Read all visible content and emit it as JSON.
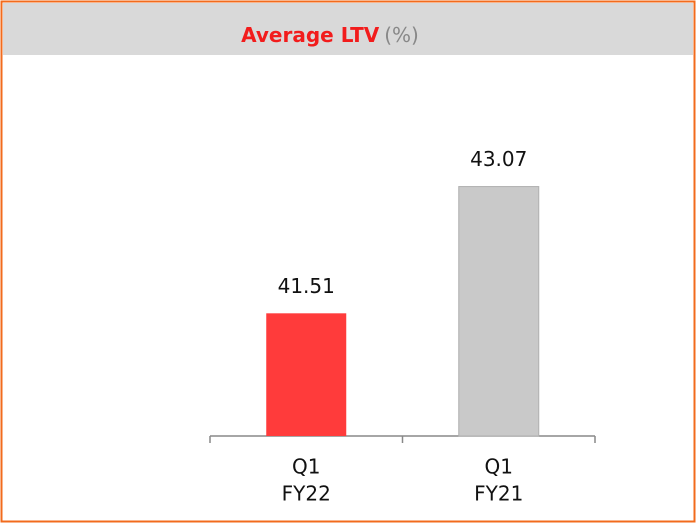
{
  "chart_data": {
    "type": "bar",
    "title": "Average LTV",
    "unit": "(%)",
    "categories": [
      [
        "Q1",
        "FY22"
      ],
      [
        "Q1",
        "FY21"
      ]
    ],
    "values": [
      41.51,
      43.07
    ],
    "colors": [
      "#ff3b3b",
      "#c9c9c9"
    ],
    "ylim": [
      40,
      44
    ]
  }
}
